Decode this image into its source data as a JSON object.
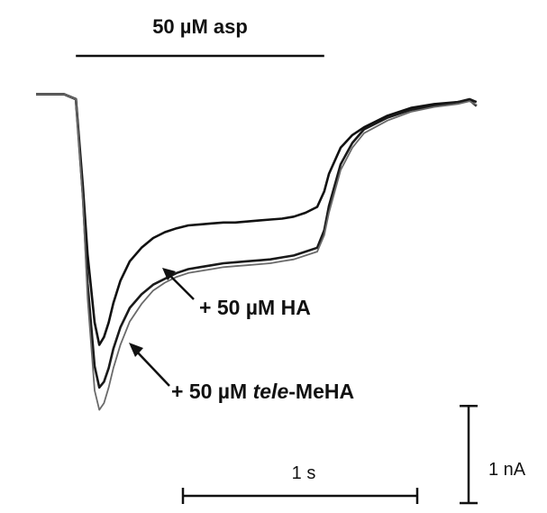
{
  "chart_data": {
    "type": "line",
    "title": "",
    "xlabel": "",
    "ylabel": "",
    "grid": false,
    "x_unit": "s",
    "y_unit": "nA",
    "xlim": [
      0,
      2.0
    ],
    "ylim": [
      -3.3,
      0.6
    ],
    "stimulus": {
      "label": "50 µM asp",
      "start": 0.17,
      "end": 1.23
    },
    "scale_bars": {
      "time_label": "1 s",
      "time_value": 1,
      "current_label": "1 nA",
      "current_value": 1
    },
    "annotations": [
      {
        "prefix": "+ 50 µM ",
        "emph": "",
        "suffix": "HA",
        "points_to": "Control + HA"
      },
      {
        "prefix": "+ 50 µM ",
        "emph": "tele",
        "suffix": "-MeHA",
        "points_to": "Control + tele-MeHA"
      }
    ],
    "series": [
      {
        "key": "control",
        "color": "#111111",
        "x": [
          0.0,
          0.05,
          0.12,
          0.17,
          0.2,
          0.22,
          0.25,
          0.27,
          0.29,
          0.31,
          0.33,
          0.36,
          0.4,
          0.45,
          0.5,
          0.55,
          0.6,
          0.65,
          0.7,
          0.75,
          0.8,
          0.85,
          0.9,
          0.95,
          1.0,
          1.05,
          1.1,
          1.15,
          1.2,
          1.23,
          1.25,
          1.3,
          1.35,
          1.4,
          1.5,
          1.6,
          1.7,
          1.8,
          1.85,
          1.88
        ],
        "y": [
          0.0,
          0.0,
          0.0,
          -0.05,
          -0.95,
          -1.65,
          -2.35,
          -2.58,
          -2.5,
          -2.35,
          -2.15,
          -1.92,
          -1.72,
          -1.58,
          -1.48,
          -1.42,
          -1.38,
          -1.35,
          -1.34,
          -1.33,
          -1.32,
          -1.32,
          -1.31,
          -1.3,
          -1.29,
          -1.28,
          -1.26,
          -1.22,
          -1.16,
          -1.0,
          -0.82,
          -0.55,
          -0.42,
          -0.34,
          -0.22,
          -0.14,
          -0.1,
          -0.08,
          -0.06,
          -0.12
        ]
      },
      {
        "key": "ha",
        "color": "#1a1a1a",
        "x": [
          0.0,
          0.05,
          0.12,
          0.17,
          0.2,
          0.22,
          0.25,
          0.27,
          0.29,
          0.31,
          0.33,
          0.36,
          0.4,
          0.45,
          0.5,
          0.55,
          0.6,
          0.65,
          0.7,
          0.75,
          0.8,
          0.85,
          0.9,
          0.95,
          1.0,
          1.05,
          1.1,
          1.15,
          1.2,
          1.23,
          1.25,
          1.3,
          1.35,
          1.4,
          1.5,
          1.6,
          1.7,
          1.8,
          1.85,
          1.88
        ],
        "y": [
          0.0,
          0.0,
          0.0,
          -0.05,
          -1.05,
          -1.95,
          -2.8,
          -3.02,
          -2.96,
          -2.82,
          -2.62,
          -2.4,
          -2.2,
          -2.06,
          -1.96,
          -1.9,
          -1.84,
          -1.8,
          -1.78,
          -1.76,
          -1.74,
          -1.73,
          -1.72,
          -1.71,
          -1.7,
          -1.68,
          -1.66,
          -1.62,
          -1.58,
          -1.4,
          -1.15,
          -0.72,
          -0.5,
          -0.36,
          -0.24,
          -0.16,
          -0.12,
          -0.08,
          -0.05,
          -0.08
        ]
      },
      {
        "key": "telemeha",
        "color": "#6a6a6a",
        "x": [
          0.0,
          0.05,
          0.12,
          0.17,
          0.2,
          0.22,
          0.25,
          0.27,
          0.29,
          0.31,
          0.33,
          0.36,
          0.4,
          0.45,
          0.5,
          0.55,
          0.6,
          0.65,
          0.7,
          0.75,
          0.8,
          0.85,
          0.9,
          0.95,
          1.0,
          1.05,
          1.1,
          1.15,
          1.2,
          1.23,
          1.25,
          1.3,
          1.35,
          1.4,
          1.5,
          1.6,
          1.7,
          1.8,
          1.85,
          1.88
        ],
        "y": [
          0.0,
          0.0,
          0.0,
          -0.05,
          -1.1,
          -2.1,
          -3.05,
          -3.25,
          -3.18,
          -3.02,
          -2.82,
          -2.58,
          -2.34,
          -2.16,
          -2.02,
          -1.94,
          -1.88,
          -1.84,
          -1.82,
          -1.8,
          -1.78,
          -1.77,
          -1.76,
          -1.75,
          -1.74,
          -1.72,
          -1.7,
          -1.66,
          -1.62,
          -1.45,
          -1.22,
          -0.78,
          -0.55,
          -0.4,
          -0.27,
          -0.18,
          -0.13,
          -0.1,
          -0.07,
          -0.11
        ]
      }
    ]
  }
}
